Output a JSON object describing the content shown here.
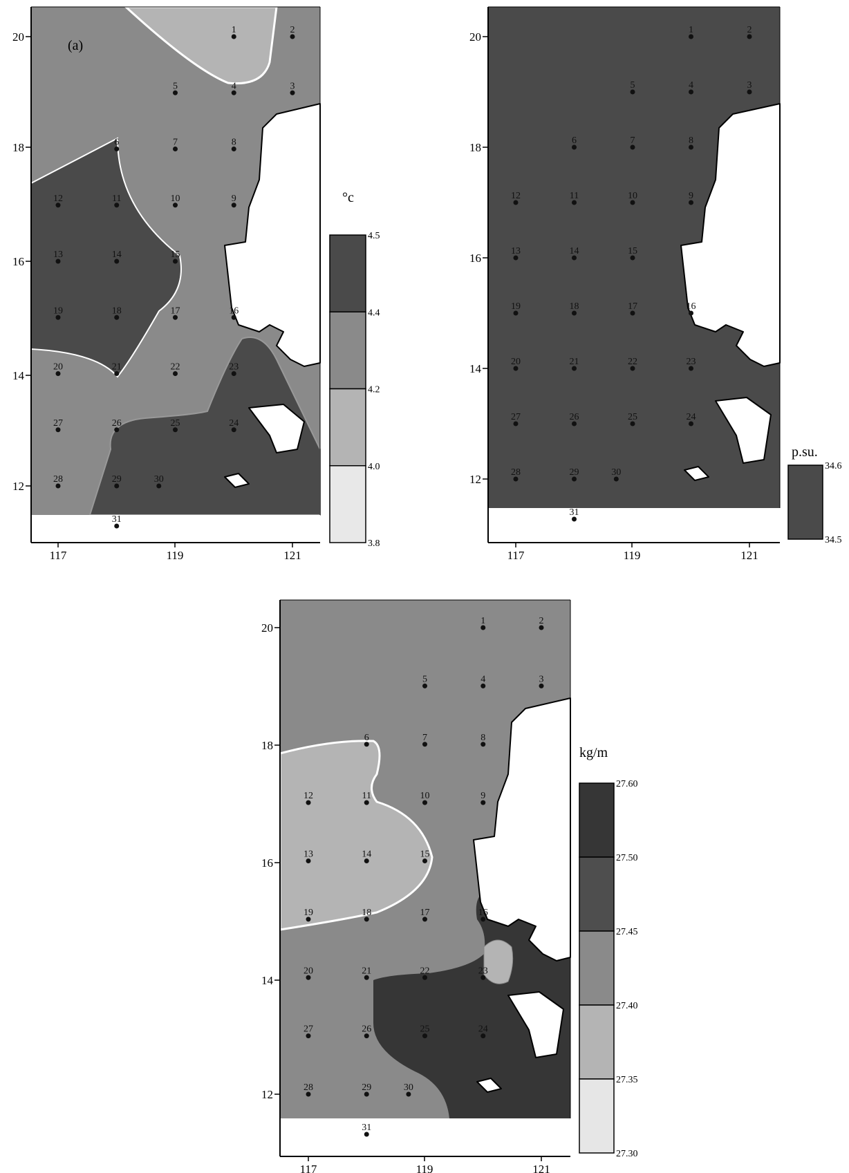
{
  "maps": [
    {
      "id": "temperature",
      "panel_label": "(a)",
      "unit": "°c",
      "x_ticks": [
        "117",
        "119",
        "121"
      ],
      "y_ticks": [
        "20",
        "18",
        "16",
        "14",
        "12"
      ],
      "legend_levels": [
        "4.5",
        "4.4",
        "4.2",
        "4.0",
        "3.8"
      ],
      "legend_colors": [
        "#4a4a4a",
        "#8a8a8a",
        "#b4b4b4",
        "#e8e8e8"
      ],
      "stations": [
        "1",
        "2",
        "3",
        "4",
        "5",
        "6",
        "7",
        "8",
        "9",
        "10",
        "11",
        "12",
        "13",
        "14",
        "15",
        "16",
        "17",
        "18",
        "19",
        "20",
        "21",
        "22",
        "23",
        "24",
        "25",
        "26",
        "27",
        "28",
        "29",
        "30",
        "31"
      ]
    },
    {
      "id": "salinity",
      "unit": "p.su.",
      "x_ticks": [
        "117",
        "119",
        "121"
      ],
      "y_ticks": [
        "20",
        "18",
        "16",
        "14",
        "12"
      ],
      "legend_levels": [
        "34.6",
        "34.5"
      ],
      "legend_colors": [
        "#4a4a4a"
      ],
      "stations": [
        "1",
        "2",
        "3",
        "4",
        "5",
        "6",
        "7",
        "8",
        "9",
        "10",
        "11",
        "12",
        "13",
        "14",
        "15",
        "16",
        "17",
        "18",
        "19",
        "20",
        "21",
        "22",
        "23",
        "24",
        "25",
        "26",
        "27",
        "28",
        "29",
        "30",
        "31"
      ]
    },
    {
      "id": "density",
      "unit": "kg/m",
      "x_ticks": [
        "117",
        "119",
        "121"
      ],
      "y_ticks": [
        "20",
        "18",
        "16",
        "14",
        "12"
      ],
      "legend_levels": [
        "27.60",
        "27.50",
        "27.45",
        "27.40",
        "27.35",
        "27.30"
      ],
      "legend_colors": [
        "#363636",
        "#4e4e4e",
        "#8a8a8a",
        "#b4b4b4",
        "#e6e6e6"
      ],
      "stations": [
        "1",
        "2",
        "3",
        "4",
        "5",
        "6",
        "7",
        "8",
        "9",
        "10",
        "11",
        "12",
        "13",
        "14",
        "15",
        "16",
        "17",
        "18",
        "19",
        "20",
        "21",
        "22",
        "23",
        "24",
        "25",
        "26",
        "27",
        "28",
        "29",
        "30",
        "31"
      ]
    }
  ]
}
